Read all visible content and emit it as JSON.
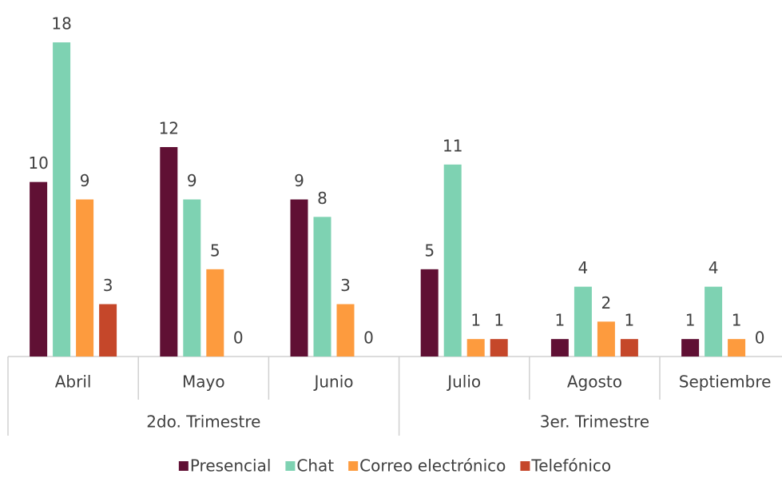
{
  "chart_data": {
    "type": "bar",
    "groups": [
      {
        "name": "2do. Trimestre",
        "categories": [
          "Abril",
          "Mayo",
          "Junio"
        ]
      },
      {
        "name": "3er. Trimestre",
        "categories": [
          "Julio",
          "Agosto",
          "Septiembre"
        ]
      }
    ],
    "series": [
      {
        "name": "Presencial",
        "color": "#601034",
        "values": [
          10,
          12,
          9,
          5,
          1,
          1
        ]
      },
      {
        "name": "Chat",
        "color": "#7ed2b2",
        "values": [
          18,
          9,
          8,
          11,
          4,
          4
        ]
      },
      {
        "name": "Correo electrónico",
        "color": "#fd9b3e",
        "values": [
          9,
          5,
          3,
          1,
          2,
          1
        ]
      },
      {
        "name": "Telefónico",
        "color": "#c5472a",
        "values": [
          3,
          0,
          0,
          1,
          1,
          0
        ]
      }
    ],
    "legend": "bottom"
  }
}
